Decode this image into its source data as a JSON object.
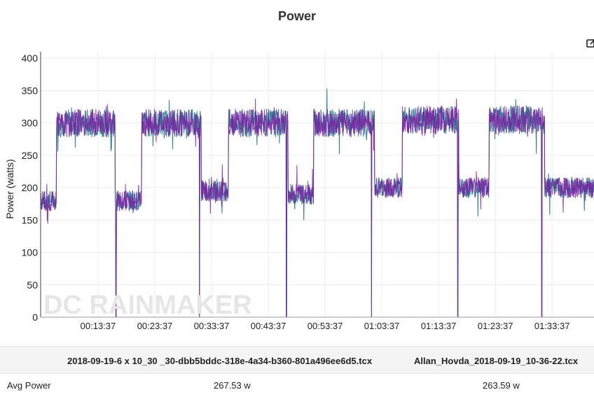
{
  "chart_data": {
    "type": "line",
    "title": "Power",
    "ylabel": "Power (watts)",
    "xlabel": "",
    "ylim": [
      0,
      410
    ],
    "yticks": [
      0,
      50,
      100,
      150,
      200,
      250,
      300,
      350,
      400
    ],
    "xticks": [
      "00:13:37",
      "00:23:37",
      "00:33:37",
      "00:43:37",
      "00:53:37",
      "01:03:37",
      "01:13:37",
      "01:23:37",
      "01:33:37"
    ],
    "xlim_minutes": [
      3.5,
      101.0
    ],
    "watermark": "DC RAINMAKER",
    "grid": true,
    "legend": "none",
    "segments_note_minutes": [
      {
        "start": 3.5,
        "end": 6.3,
        "level": 180
      },
      {
        "start": 6.3,
        "end": 16.6,
        "level": 300
      },
      {
        "start": 16.6,
        "end": 21.3,
        "level": 180
      },
      {
        "start": 21.3,
        "end": 31.8,
        "level": 300
      },
      {
        "start": 31.8,
        "end": 36.6,
        "level": 195
      },
      {
        "start": 36.6,
        "end": 47.1,
        "level": 300
      },
      {
        "start": 47.1,
        "end": 51.6,
        "level": 190
      },
      {
        "start": 51.6,
        "end": 62.3,
        "level": 300
      },
      {
        "start": 62.3,
        "end": 67.2,
        "level": 200
      },
      {
        "start": 67.2,
        "end": 77.2,
        "level": 305
      },
      {
        "start": 77.2,
        "end": 82.5,
        "level": 200
      },
      {
        "start": 82.5,
        "end": 92.3,
        "level": 305
      },
      {
        "start": 92.3,
        "end": 101.0,
        "level": 200
      }
    ],
    "drops_minutes": [
      16.8,
      31.5,
      46.8,
      61.8,
      77.0,
      91.8
    ],
    "series": [
      {
        "name": "2018-09-19-6 x 10_30 _30-dbb5bddc-318e-4a34-b360-801a496ee6d5.tcx",
        "color": "#1f7a8c",
        "avg": "267.53 w"
      },
      {
        "name": "Allan_Hovda_2018-09-19_10-36-22.tcx",
        "color": "#7b1fa2",
        "avg": "263.59 w"
      }
    ]
  },
  "table": {
    "row_label": "Avg Power"
  }
}
